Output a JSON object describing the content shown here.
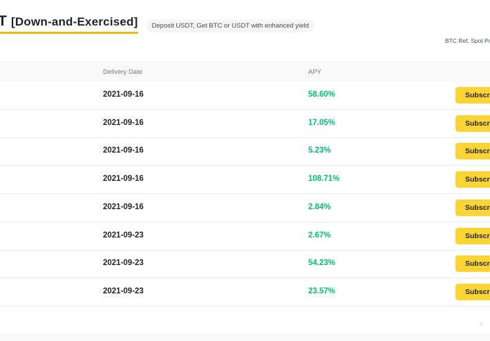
{
  "header": {
    "title_main": "T",
    "title_bracket": "[Down-and-Exercised]",
    "pill_text": "Deposit USDT, Get BTC or USDT with enhanced yield",
    "ref_price_label": "BTC Ref. Spot Pri"
  },
  "table": {
    "columns": {
      "delivery": "Delivery Date",
      "apy": "APY"
    },
    "rows": [
      {
        "date": "2021-09-16",
        "apy": "58.60%",
        "action": "Subscrib"
      },
      {
        "date": "2021-09-16",
        "apy": "17.05%",
        "action": "Subscrib"
      },
      {
        "date": "2021-09-16",
        "apy": "5.23%",
        "action": "Subscrib"
      },
      {
        "date": "2021-09-16",
        "apy": "108.71%",
        "action": "Subscrib"
      },
      {
        "date": "2021-09-16",
        "apy": "2.84%",
        "action": "Subscrib"
      },
      {
        "date": "2021-09-23",
        "apy": "2.67%",
        "action": "Subscrib"
      },
      {
        "date": "2021-09-23",
        "apy": "54.23%",
        "action": "Subscrib"
      },
      {
        "date": "2021-09-23",
        "apy": "23.57%",
        "action": "Subscrib"
      }
    ]
  },
  "pagination": {
    "prev_icon": "chevron-left-icon",
    "prev_glyph": "‹"
  },
  "colors": {
    "accent": "#f0b90b",
    "button": "#fcd535",
    "positive": "#02c076"
  }
}
